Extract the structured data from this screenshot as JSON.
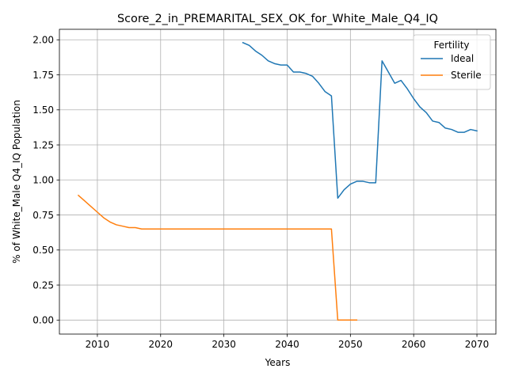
{
  "chart_data": {
    "type": "line",
    "title": "Score_2_in_PREMARITAL_SEX_OK_for_White_Male_Q4_IQ",
    "xlabel": "Years",
    "ylabel": "% of White_Male Q4_IQ Population",
    "xlim": [
      2004,
      2073
    ],
    "ylim": [
      -0.1,
      2.075
    ],
    "xticks": [
      2010,
      2020,
      2030,
      2040,
      2050,
      2060,
      2070
    ],
    "yticks": [
      0.0,
      0.25,
      0.5,
      0.75,
      1.0,
      1.25,
      1.5,
      1.75,
      2.0
    ],
    "ytick_labels": [
      "0.00",
      "0.25",
      "0.50",
      "0.75",
      "1.00",
      "1.25",
      "1.50",
      "1.75",
      "2.00"
    ],
    "grid": true,
    "legend": {
      "title": "Fertility",
      "position": "top-right"
    },
    "series": [
      {
        "name": "Ideal",
        "color": "#1f77b4",
        "x": [
          2033,
          2034,
          2035,
          2036,
          2037,
          2038,
          2039,
          2040,
          2041,
          2042,
          2043,
          2044,
          2045,
          2046,
          2047,
          2048,
          2049,
          2050,
          2051,
          2052,
          2053,
          2054,
          2055,
          2056,
          2057,
          2058,
          2059,
          2060,
          2061,
          2062,
          2063,
          2064,
          2065,
          2066,
          2067,
          2068,
          2069,
          2070
        ],
        "y": [
          1.98,
          1.96,
          1.92,
          1.89,
          1.85,
          1.83,
          1.82,
          1.82,
          1.77,
          1.77,
          1.76,
          1.74,
          1.69,
          1.63,
          1.6,
          0.87,
          0.93,
          0.97,
          0.99,
          0.99,
          0.98,
          0.98,
          1.85,
          1.77,
          1.69,
          1.71,
          1.65,
          1.58,
          1.52,
          1.48,
          1.42,
          1.41,
          1.37,
          1.36,
          1.34,
          1.34,
          1.36,
          1.35
        ]
      },
      {
        "name": "Sterile",
        "color": "#ff7f0e",
        "x": [
          2007,
          2008,
          2009,
          2010,
          2011,
          2012,
          2013,
          2014,
          2015,
          2016,
          2017,
          2018,
          2019,
          2020,
          2021,
          2022,
          2023,
          2024,
          2025,
          2026,
          2027,
          2028,
          2029,
          2030,
          2031,
          2032,
          2033,
          2034,
          2035,
          2036,
          2037,
          2038,
          2039,
          2040,
          2041,
          2042,
          2043,
          2044,
          2045,
          2046,
          2047,
          2048,
          2049,
          2050,
          2051
        ],
        "y": [
          0.89,
          0.85,
          0.81,
          0.77,
          0.73,
          0.7,
          0.68,
          0.67,
          0.66,
          0.66,
          0.65,
          0.65,
          0.65,
          0.65,
          0.65,
          0.65,
          0.65,
          0.65,
          0.65,
          0.65,
          0.65,
          0.65,
          0.65,
          0.65,
          0.65,
          0.65,
          0.65,
          0.65,
          0.65,
          0.65,
          0.65,
          0.65,
          0.65,
          0.65,
          0.65,
          0.65,
          0.65,
          0.65,
          0.65,
          0.65,
          0.65,
          0.0,
          0.0,
          0.0,
          0.0
        ]
      }
    ]
  }
}
